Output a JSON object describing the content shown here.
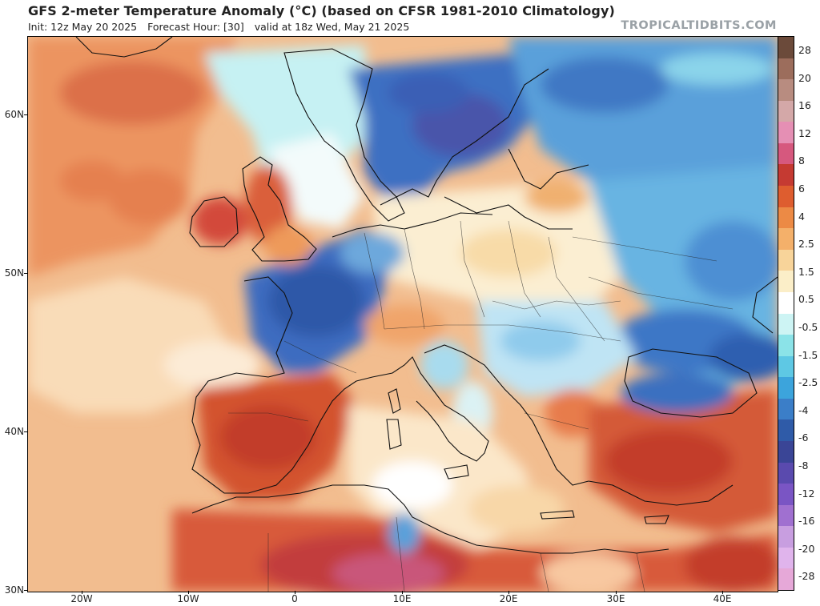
{
  "header": {
    "title": "GFS 2-meter Temperature Anomaly (°C) (based on CFSR 1981-2010 Climatology)",
    "init": "Init: 12z May 20 2025",
    "forecast_hour": "Forecast Hour: [30]",
    "valid": "valid at 18z Wed, May 21 2025",
    "brand": "TROPICALTIDBITS.COM"
  },
  "axes": {
    "lat_labels": [
      "60N",
      "50N",
      "40N",
      "30N"
    ],
    "lon_labels": [
      "20W",
      "10W",
      "0",
      "10E",
      "20E",
      "30E",
      "40E"
    ]
  },
  "colorbar": {
    "labels": [
      "28",
      "20",
      "16",
      "12",
      "8",
      "6",
      "4",
      "2.5",
      "1.5",
      "0.5",
      "-0.5",
      "-1.5",
      "-2.5",
      "-4",
      "-6",
      "-8",
      "-12",
      "-16",
      "-20",
      "-28"
    ],
    "colors": [
      "#6b4a3a",
      "#9c6d5c",
      "#b88c80",
      "#d4a8a8",
      "#e58fb4",
      "#d6587e",
      "#c53a32",
      "#de5d2f",
      "#ec8a45",
      "#f4b06a",
      "#f8d49a",
      "#fbeec8",
      "#ffffff",
      "#cdf4f4",
      "#8be3e8",
      "#5ec8e4",
      "#3ca4dc",
      "#3b7ec8",
      "#2f5ba8",
      "#3a4596",
      "#5a4aae",
      "#7a55c4",
      "#a070d0",
      "#c89ee0",
      "#e0b4ec",
      "#e6a8d8"
    ]
  }
}
